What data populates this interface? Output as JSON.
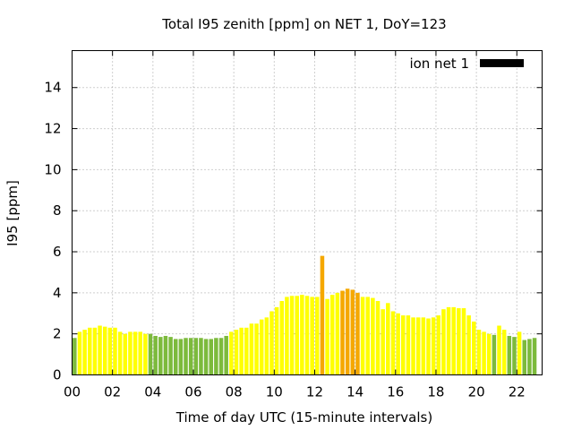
{
  "chart_data": {
    "type": "bar",
    "title": "Total I95 zenith [ppm] on NET 1, DoY=123",
    "xlabel": "Time of day UTC (15-minute intervals)",
    "ylabel": "I95 [ppm]",
    "xlim": [
      0,
      23.25
    ],
    "ylim": [
      0,
      15.8
    ],
    "x_ticks": [
      {
        "value": 0,
        "label": "00"
      },
      {
        "value": 2,
        "label": "02"
      },
      {
        "value": 4,
        "label": "04"
      },
      {
        "value": 6,
        "label": "06"
      },
      {
        "value": 8,
        "label": "08"
      },
      {
        "value": 10,
        "label": "10"
      },
      {
        "value": 12,
        "label": "12"
      },
      {
        "value": 14,
        "label": "14"
      },
      {
        "value": 16,
        "label": "16"
      },
      {
        "value": 18,
        "label": "18"
      },
      {
        "value": 20,
        "label": "20"
      },
      {
        "value": 22,
        "label": "22"
      }
    ],
    "y_ticks": [
      0,
      2,
      4,
      6,
      8,
      10,
      12,
      14
    ],
    "grid": true,
    "legend": {
      "label": "ion net 1",
      "placement": "top-right",
      "color": "#000000"
    },
    "colors": {
      "green": "#7cba3c",
      "yellow": "#ffff00",
      "orange": "#f5a800"
    },
    "x": [
      0.125,
      0.375,
      0.625,
      0.875,
      1.125,
      1.375,
      1.625,
      1.875,
      2.125,
      2.375,
      2.625,
      2.875,
      3.125,
      3.375,
      3.625,
      3.875,
      4.125,
      4.375,
      4.625,
      4.875,
      5.125,
      5.375,
      5.625,
      5.875,
      6.125,
      6.375,
      6.625,
      6.875,
      7.125,
      7.375,
      7.625,
      7.875,
      8.125,
      8.375,
      8.625,
      8.875,
      9.125,
      9.375,
      9.625,
      9.875,
      10.125,
      10.375,
      10.625,
      10.875,
      11.125,
      11.375,
      11.625,
      11.875,
      12.125,
      12.375,
      12.625,
      12.875,
      13.125,
      13.375,
      13.625,
      13.875,
      14.125,
      14.375,
      14.625,
      14.875,
      15.125,
      15.375,
      15.625,
      15.875,
      16.125,
      16.375,
      16.625,
      16.875,
      17.125,
      17.375,
      17.625,
      17.875,
      18.125,
      18.375,
      18.625,
      18.875,
      19.125,
      19.375,
      19.625,
      19.875,
      20.125,
      20.375,
      20.625,
      20.875,
      21.125,
      21.375,
      21.625,
      21.875,
      22.125,
      22.375,
      22.625,
      22.875
    ],
    "values": [
      1.8,
      2.1,
      2.2,
      2.3,
      2.3,
      2.4,
      2.35,
      2.3,
      2.3,
      2.1,
      2.0,
      2.1,
      2.1,
      2.1,
      2.0,
      2.0,
      1.9,
      1.85,
      1.9,
      1.85,
      1.75,
      1.75,
      1.8,
      1.8,
      1.8,
      1.8,
      1.75,
      1.75,
      1.8,
      1.8,
      1.9,
      2.1,
      2.2,
      2.3,
      2.3,
      2.5,
      2.5,
      2.7,
      2.8,
      3.1,
      3.3,
      3.6,
      3.8,
      3.85,
      3.85,
      3.9,
      3.85,
      3.8,
      3.8,
      5.8,
      3.7,
      3.9,
      4.0,
      4.1,
      4.2,
      4.15,
      4.0,
      3.8,
      3.8,
      3.75,
      3.6,
      3.2,
      3.5,
      3.1,
      3.0,
      2.9,
      2.9,
      2.8,
      2.8,
      2.8,
      2.75,
      2.8,
      2.9,
      3.2,
      3.3,
      3.3,
      3.25,
      3.25,
      2.9,
      2.6,
      2.2,
      2.1,
      2.0,
      1.95,
      2.4,
      2.2,
      1.9,
      1.85,
      2.1,
      1.7,
      1.75,
      1.8
    ],
    "color_keys": [
      "green",
      "yellow",
      "yellow",
      "yellow",
      "yellow",
      "yellow",
      "yellow",
      "yellow",
      "yellow",
      "yellow",
      "yellow",
      "yellow",
      "yellow",
      "yellow",
      "yellow",
      "green",
      "green",
      "green",
      "green",
      "green",
      "green",
      "green",
      "green",
      "green",
      "green",
      "green",
      "green",
      "green",
      "green",
      "green",
      "green",
      "yellow",
      "yellow",
      "yellow",
      "yellow",
      "yellow",
      "yellow",
      "yellow",
      "yellow",
      "yellow",
      "yellow",
      "yellow",
      "yellow",
      "yellow",
      "yellow",
      "yellow",
      "yellow",
      "yellow",
      "yellow",
      "orange",
      "yellow",
      "yellow",
      "yellow",
      "orange",
      "orange",
      "orange",
      "orange",
      "yellow",
      "yellow",
      "yellow",
      "yellow",
      "yellow",
      "yellow",
      "yellow",
      "yellow",
      "yellow",
      "yellow",
      "yellow",
      "yellow",
      "yellow",
      "yellow",
      "yellow",
      "yellow",
      "yellow",
      "yellow",
      "yellow",
      "yellow",
      "yellow",
      "yellow",
      "yellow",
      "yellow",
      "yellow",
      "yellow",
      "green",
      "yellow",
      "yellow",
      "green",
      "green",
      "yellow",
      "green",
      "green",
      "green"
    ]
  }
}
